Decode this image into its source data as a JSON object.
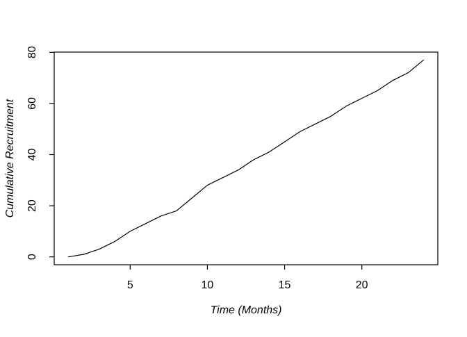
{
  "chart_data": {
    "type": "line",
    "title": "",
    "xlabel": "Time (Months)",
    "ylabel": "Cumulative Recruitment",
    "x": [
      1,
      2,
      3,
      4,
      5,
      6,
      7,
      8,
      9,
      10,
      11,
      12,
      13,
      14,
      15,
      16,
      17,
      18,
      19,
      20,
      21,
      22,
      23,
      24
    ],
    "values": [
      0,
      1,
      3,
      6,
      10,
      13,
      16,
      18,
      23,
      28,
      31,
      34,
      38,
      41,
      45,
      49,
      52,
      55,
      59,
      62,
      65,
      69,
      72,
      77
    ],
    "series_name": "Cumulative Recruitment",
    "x_ticks": [
      5,
      10,
      15,
      20
    ],
    "y_ticks": [
      0,
      20,
      40,
      60,
      80
    ],
    "xlim": [
      1,
      24
    ],
    "ylim": [
      0,
      77
    ],
    "axis_pad_fraction": 0.04,
    "grid": false,
    "legend": "none",
    "line_color": "#000000",
    "axis_color": "#000000",
    "background": "#ffffff"
  }
}
